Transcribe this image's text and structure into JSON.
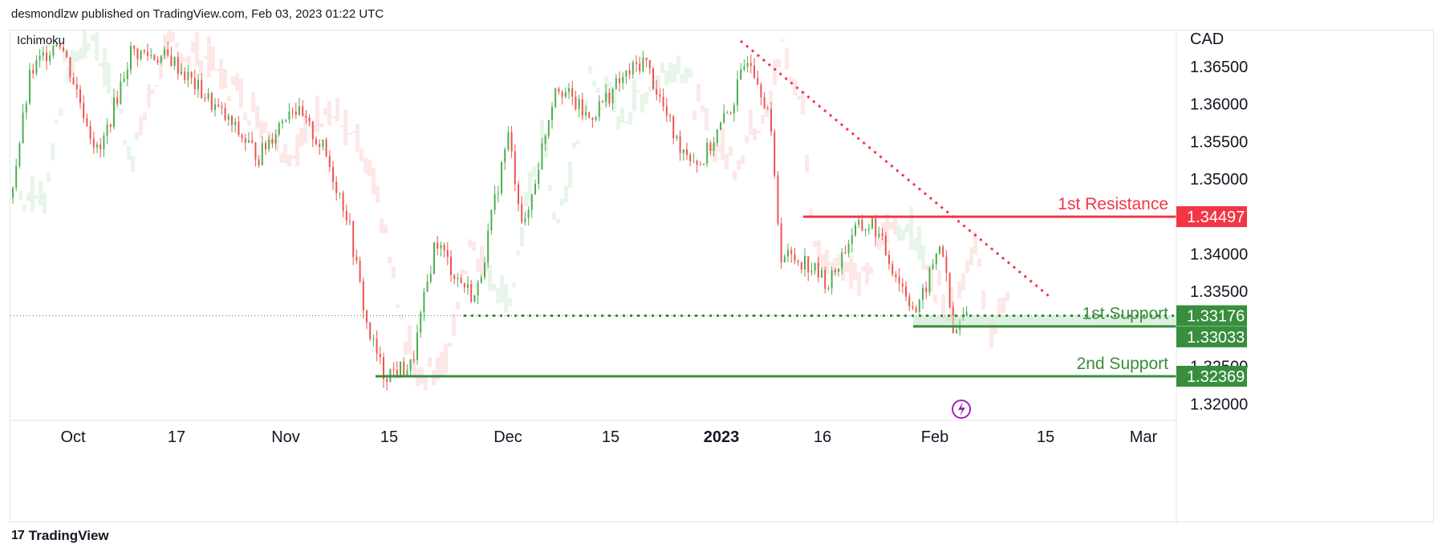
{
  "header": {
    "published_by": "desmondlzw published on TradingView.com, Feb 03, 2023 01:22 UTC"
  },
  "footer": {
    "brand": "TradingView"
  },
  "colors": {
    "up": "#26a69a",
    "up_candle": "#4caf50",
    "down": "#ef5350",
    "resistance": "#f23645",
    "support": "#388e3c",
    "trendline": "#f23645",
    "cloud_bull": "#e8f5e9",
    "cloud_bear": "#fde7e7"
  },
  "chart_data": {
    "type": "candlestick",
    "indicator": "Ichimoku",
    "currency": "CAD",
    "ylim": [
      1.3178,
      1.3698
    ],
    "y_ticks": [
      "1.36500",
      "1.36000",
      "1.35500",
      "1.35000",
      "1.34000",
      "1.33500",
      "1.32500",
      "1.32000"
    ],
    "y_tick_values": [
      1.365,
      1.36,
      1.355,
      1.35,
      1.34,
      1.335,
      1.325,
      1.32
    ],
    "x_ticks": [
      "Oct",
      "17",
      "Nov",
      "15",
      "Dec",
      "15",
      "2023",
      "16",
      "Feb",
      "15",
      "Mar"
    ],
    "levels": [
      {
        "name": "1st Resistance",
        "value": 1.34497,
        "label": "1.34497"
      },
      {
        "name": "1st Support",
        "value": 1.33176,
        "label": "1.33176"
      },
      {
        "name": "",
        "value": 1.33033,
        "label": "1.33033"
      },
      {
        "name": "2nd Support",
        "value": 1.32369,
        "label": "1.32369"
      }
    ],
    "trendline": {
      "from_price": 1.3684,
      "to_price": 1.3343,
      "style": "dotted"
    },
    "series_summary": {
      "start": 1.3475,
      "high": 1.3695,
      "low": 1.3225,
      "last": 1.3317
    }
  }
}
